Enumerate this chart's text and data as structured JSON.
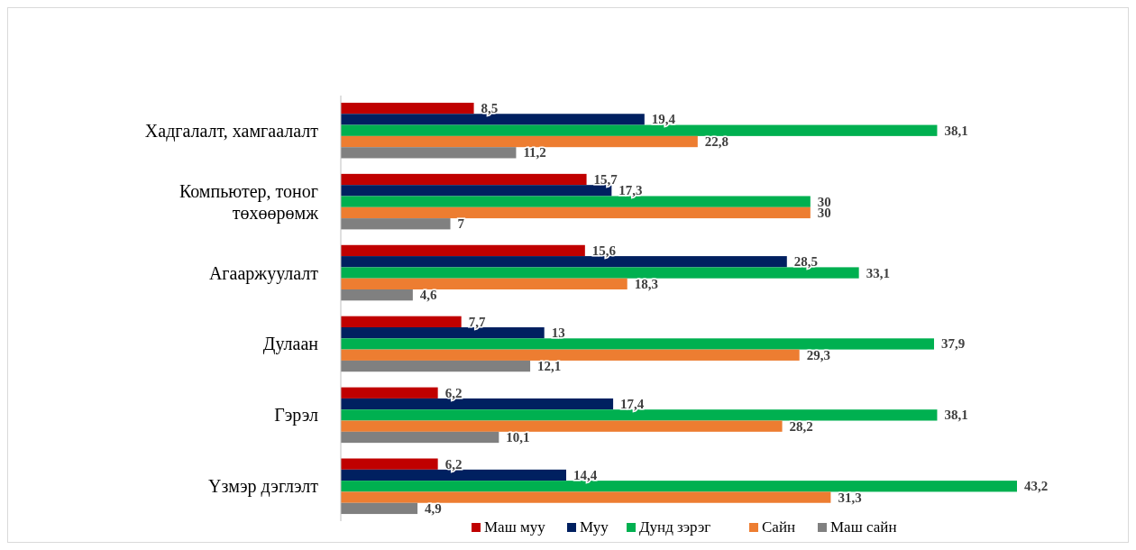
{
  "chart_data": {
    "type": "bar",
    "orientation": "horizontal",
    "legend": "bottom",
    "categories": [
      "Хадгалалт, хамгаалалт",
      "Компьютер, тоног төхөөрөмж",
      "Агааржуулалт",
      "Дулаан",
      "Гэрэл",
      "Үзмэр дэглэлт"
    ],
    "series": [
      {
        "name": "Маш муу",
        "color": "#c00000",
        "values": [
          8.5,
          15.7,
          15.6,
          7.7,
          6.2,
          6.2
        ],
        "value_labels": [
          "8,5",
          "15,7",
          "15,6",
          "7,7",
          "6,2",
          "6,2"
        ]
      },
      {
        "name": "Муу",
        "color": "#002060",
        "values": [
          19.4,
          17.3,
          28.5,
          13,
          17.4,
          14.4
        ],
        "value_labels": [
          "19,4",
          "17,3",
          "28,5",
          "13",
          "17,4",
          "14,4"
        ]
      },
      {
        "name": "Дунд зэрэг",
        "color": "#00b050",
        "values": [
          38.1,
          30,
          33.1,
          37.9,
          38.1,
          43.2
        ],
        "value_labels": [
          "38,1",
          "30",
          "33,1",
          "37,9",
          "38,1",
          "43,2"
        ]
      },
      {
        "name": "Сайн",
        "color": "#ed7d31",
        "values": [
          22.8,
          30,
          18.3,
          29.3,
          28.2,
          31.3
        ],
        "value_labels": [
          "22,8",
          "30",
          "18,3",
          "29,3",
          "28,2",
          "31,3"
        ]
      },
      {
        "name": "Маш сайн",
        "color": "#808080",
        "values": [
          11.2,
          7,
          4.6,
          12.1,
          10.1,
          4.9
        ],
        "value_labels": [
          "11,2",
          "7",
          "4,6",
          "12,1",
          "10,1",
          "4,9"
        ]
      }
    ]
  }
}
